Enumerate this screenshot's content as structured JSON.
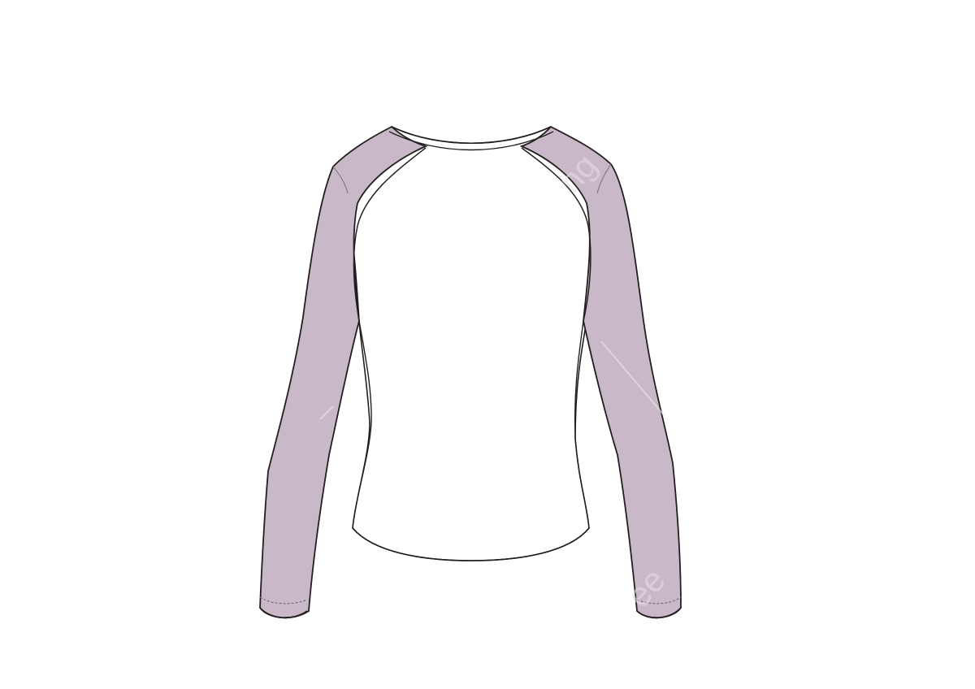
{
  "illustration": {
    "subject": "raglan-long-sleeve-shirt-back-view",
    "colors": {
      "background": "#ffffff",
      "body_fill": "#ffffff",
      "sleeve_fill": "#c9b9c8",
      "outline": "#231f20",
      "stitch": "#6b6468"
    }
  },
  "watermark": {
    "text": "pngtree"
  }
}
